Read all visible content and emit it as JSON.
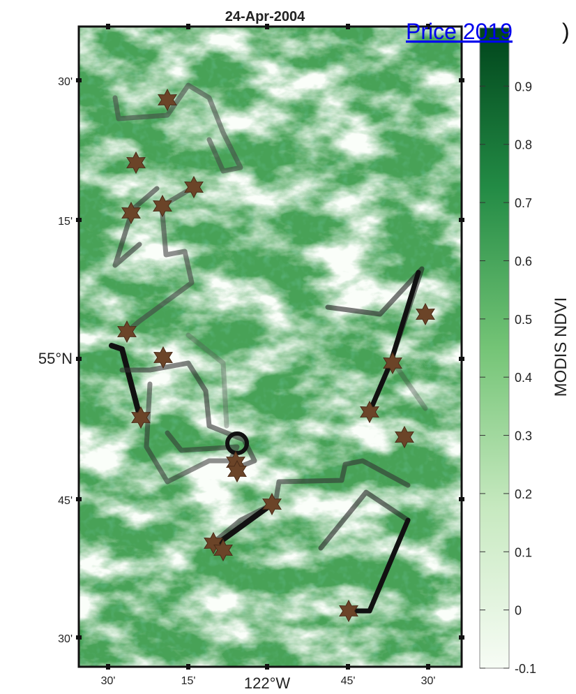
{
  "header": {
    "title": "24-Apr-2004",
    "citation_link": "Price 2019",
    "citation_close": ")"
  },
  "map": {
    "lat_labels": [
      "30'",
      "15'",
      "55°N",
      "45'",
      "30'"
    ],
    "lon_labels": [
      "30'",
      "15'",
      "122°W",
      "45'",
      "30'"
    ]
  },
  "colorbar": {
    "label": "MODIS NDVI",
    "lim": [
      -0.1,
      1.0
    ],
    "ticks": [
      0.9,
      0.8,
      0.7,
      0.6,
      0.5,
      0.4,
      0.3,
      0.2,
      0.1,
      0,
      -0.1
    ]
  }
}
